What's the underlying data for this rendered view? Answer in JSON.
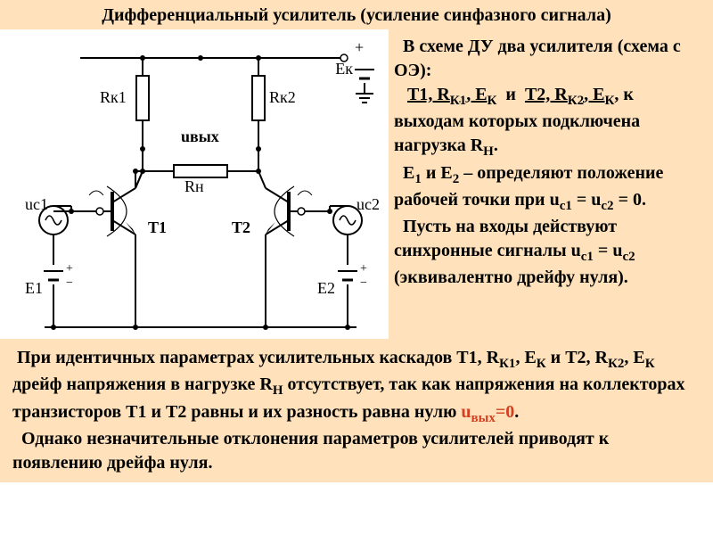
{
  "colors": {
    "title_bg": "#ffe2bc",
    "right_bg": "#ffe2bc",
    "bottom_bg": "#ffe2bc",
    "red": "#d44020",
    "stroke": "#000000",
    "fill_node": "#000000"
  },
  "title": "Дифференциальный усилитель (усиление синфазного сигнала)",
  "title_fontsize": 20,
  "right_html": "&nbsp;&nbsp;В схеме ДУ  два усилителя (схема с ОЭ):<br>&nbsp;&nbsp;&nbsp;<u>Т1, R<sub>К1</sub>, Е<sub>К</sub></u>&nbsp; и &nbsp;<u>Т2, R<sub>К2</sub>, Е<sub>К</sub></u>, к выходам которых подключена нагрузка R<sub>Н</sub>.<br>&nbsp;&nbsp;Е<sub>1</sub> и Е<sub>2</sub> – определяют положение рабочей точки при <b>u<sub>с1</sub> = u<sub>с2</sub> = 0</b>.<br>&nbsp;&nbsp;Пусть на входы действуют синхронные сигналы u<sub>с1</sub> = <b>u<sub>с2</sub></b> (эквивалентно дрейфу нуля).",
  "right_fontsize": 20,
  "bottom_html": "&nbsp;При идентичных параметрах усилительных каскадов Т1, R<sub>К1</sub>, Е<sub>К</sub> и Т2, R<sub>К2</sub>, Е<sub>К</sub> дрейф напряжения в нагрузке  R<sub>Н</sub> отсутствует, так как напряжения  на коллекторах транзисторов Т1 и Т2 равны и их разность равна нулю <span class='hl-red'>u<sub>вых</sub>=0</span>.<br>&nbsp;&nbsp;Однако незначительные отклонения параметров усилителей приводят к появлению дрейфа нуля.",
  "bottom_fontsize": 20,
  "circuit": {
    "stroke_width": 2,
    "node_radius": 3,
    "labels": {
      "Rk1": "Rк1",
      "Rk2": "Rк2",
      "Ek": "Ек",
      "Uout": "uвых",
      "Rn": "Rн",
      "T1": "T1",
      "T2": "T2",
      "Uc1": "uс1",
      "Uc2": "uс2",
      "E1": "E1",
      "E2": "E2",
      "plus": "+",
      "minus": "−"
    },
    "label_fontsize": 18
  }
}
